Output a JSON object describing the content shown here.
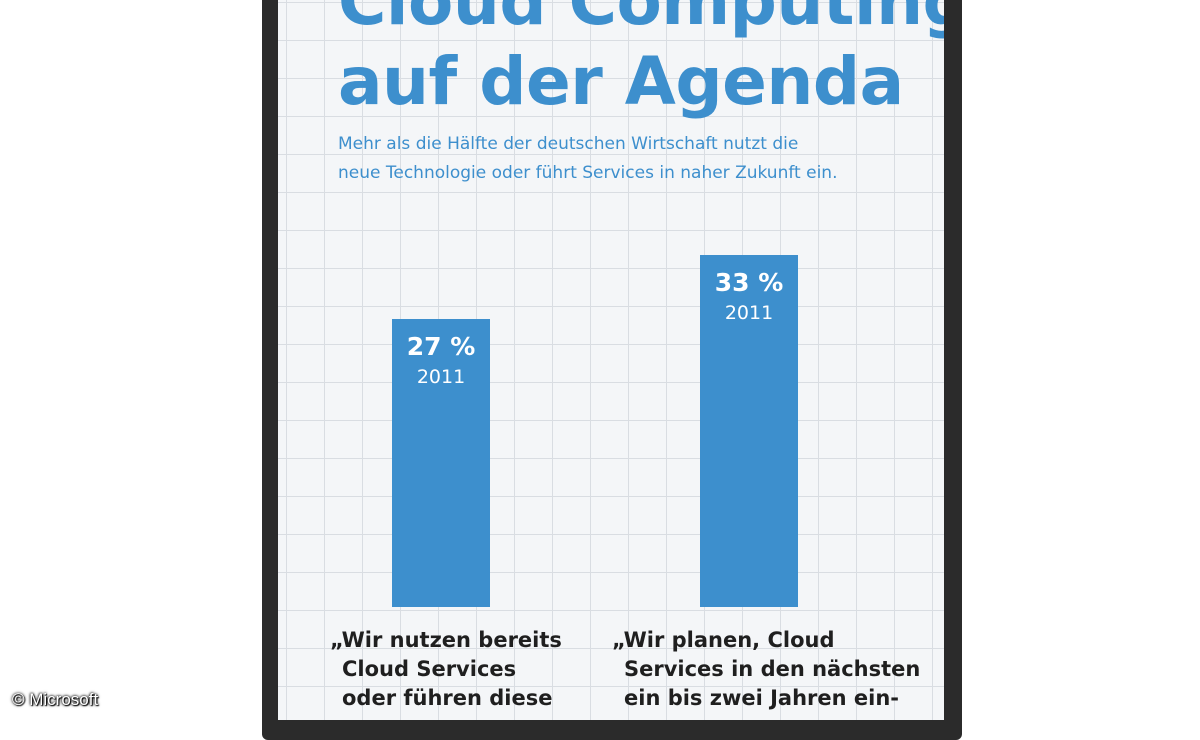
{
  "title_lines": [
    "Cloud Computing",
    "auf der Agenda"
  ],
  "subtitle_lines": [
    "Mehr als die Hälfte der deutschen Wirtschaft nutzt die",
    "neue Technologie oder führt Services in naher Zukunft ein."
  ],
  "chart_data": {
    "type": "bar",
    "title": "Cloud Computing auf der Agenda",
    "subtitle": "Mehr als die Hälfte der deutschen Wirtschaft nutzt die neue Technologie oder führt Services in naher Zukunft ein.",
    "categories": [
      "„Wir nutzen bereits Cloud Services oder führen diese",
      "„Wir planen, Cloud Services in den nächsten ein bis zwei Jahren ein-"
    ],
    "values": [
      27,
      33
    ],
    "value_labels": [
      "27 %",
      "33 %"
    ],
    "year_labels": [
      "2011",
      "2011"
    ],
    "unit": "%",
    "bar_color": "#3d8fcd",
    "grid": true
  },
  "captions": [
    [
      "„Wir nutzen bereits",
      "Cloud Services",
      "oder führen diese"
    ],
    [
      "„Wir planen, Cloud",
      "Services in den nächsten",
      "ein bis zwei Jahren ein-"
    ]
  ],
  "copyright": "© Microsoft"
}
